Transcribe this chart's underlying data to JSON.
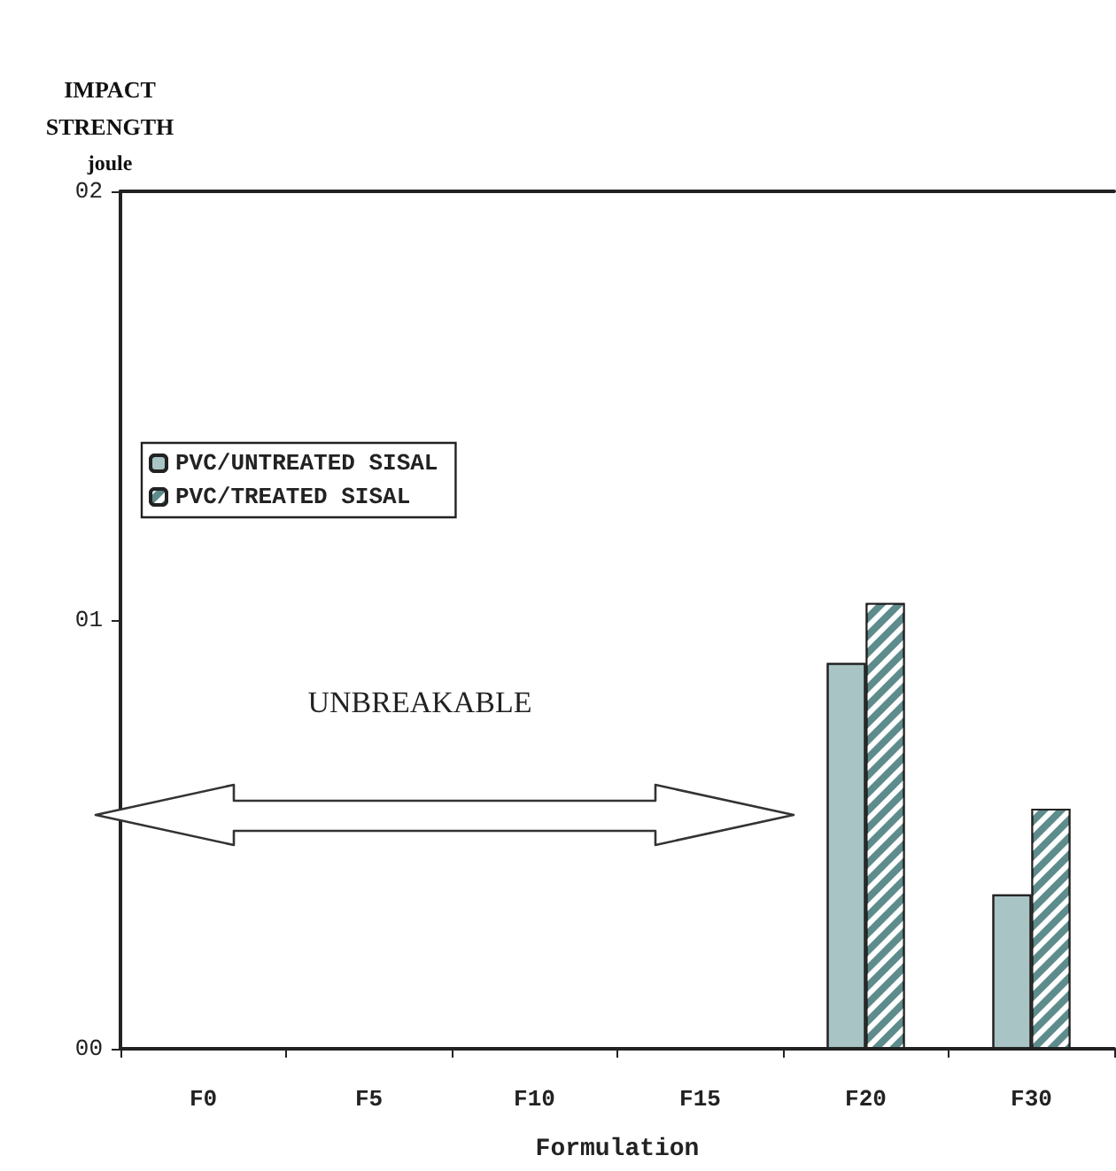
{
  "chart_data": {
    "type": "bar",
    "ylabel": "IMPACT\nSTRENGTH\njoule",
    "xlabel": "Formulation",
    "categories": [
      "F0",
      "F5",
      "F10",
      "F15",
      "F20",
      "F30"
    ],
    "series": [
      {
        "name": "PVC/UNTREATED SISAL",
        "color": "#a9c4c4",
        "values": [
          null,
          null,
          null,
          null,
          0.9,
          0.36
        ]
      },
      {
        "name": "PVC/TREATED SISAL",
        "color": "#5e8c8c",
        "values": [
          null,
          null,
          null,
          null,
          1.04,
          0.56
        ]
      }
    ],
    "ylim": [
      0,
      2
    ],
    "yticks": [
      {
        "value": 0,
        "label": "00"
      },
      {
        "value": 1,
        "label": "01"
      },
      {
        "value": 2,
        "label": "02"
      }
    ],
    "annotations": [
      "UNBREAKABLE"
    ],
    "legend": "top left",
    "grid": false
  }
}
